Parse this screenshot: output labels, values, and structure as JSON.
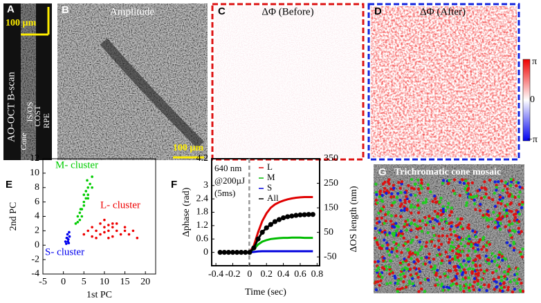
{
  "panels": {
    "A": {
      "label": "A",
      "scale": "100 µm",
      "title": "AO-OCT B-scan",
      "layers": [
        "Cone",
        "IS/OS",
        "COST",
        "RPE"
      ]
    },
    "B": {
      "label": "B",
      "title": "Amplitude",
      "scale": "100 µm"
    },
    "C": {
      "label": "C",
      "title": "ΔΦ (Before)"
    },
    "D": {
      "label": "D",
      "title": "ΔΦ (After)",
      "colorbar": [
        "π",
        "0",
        "−π"
      ]
    },
    "G": {
      "label": "G",
      "title": "Trichromatic cone mosaic"
    }
  },
  "chart_data": [
    {
      "type": "scatter",
      "label": "E",
      "xlabel": "1st PC",
      "ylabel": "2nd PC",
      "xlim": [
        -5,
        22.5
      ],
      "ylim": [
        -4,
        12
      ],
      "xticks": [
        -5,
        0,
        5,
        10,
        15,
        20
      ],
      "yticks": [
        -4,
        -2,
        0,
        2,
        4,
        6,
        8,
        10,
        12
      ],
      "series": [
        {
          "name": "M- cluster",
          "color": "#00cc00",
          "x": [
            3,
            3.5,
            4,
            4.5,
            5,
            5,
            5.5,
            6,
            6,
            6.5,
            7,
            4,
            4.5,
            5.5,
            3.5,
            6,
            5,
            7,
            4.2,
            5.8
          ],
          "values": [
            3,
            4,
            4.5,
            5,
            6,
            5.5,
            6.5,
            7,
            8,
            8.5,
            9.5,
            3.5,
            4,
            7.5,
            3.2,
            6.5,
            7,
            8,
            5,
            9
          ]
        },
        {
          "name": "L- cluster",
          "color": "#ee0000",
          "x": [
            5,
            6,
            7,
            8,
            9,
            10,
            11,
            12,
            13,
            14,
            15,
            16,
            17,
            18,
            8,
            9,
            10,
            11,
            12,
            13,
            10,
            11,
            12,
            7,
            15
          ],
          "values": [
            1.5,
            2,
            2.5,
            2,
            3,
            2.5,
            2,
            3,
            2,
            1.5,
            2,
            1.5,
            2,
            1,
            1,
            1.5,
            3.5,
            1,
            2.5,
            3,
            1.8,
            2.8,
            1.2,
            1.2,
            2.5
          ]
        },
        {
          "name": "S- cluster",
          "color": "#0000ee",
          "x": [
            0.5,
            0.8,
            1,
            1.2,
            1.5,
            0.7,
            1.1,
            1.4,
            0.9,
            1.3
          ],
          "values": [
            0.5,
            1,
            1.5,
            0.8,
            1.2,
            0.2,
            0.5,
            1.8,
            1,
            0.3
          ]
        }
      ]
    },
    {
      "type": "line",
      "label": "F",
      "xlabel": "Time (sec)",
      "ylabel": "Δphase (rad)",
      "y2label": "ΔOS length (nm)",
      "annotation": [
        "640 nm",
        "@200µJ",
        "(5ms)"
      ],
      "xlim": [
        -0.45,
        0.83
      ],
      "ylim": [
        -0.6,
        4.2
      ],
      "y2lim": [
        -86,
        350
      ],
      "xticks": [
        -0.4,
        -0.2,
        0,
        0.2,
        0.4,
        0.6,
        0.8
      ],
      "yticks": [
        0,
        0.6,
        1.2,
        1.8,
        2.4,
        3,
        4.2
      ],
      "y2ticks": [
        -50,
        50,
        150,
        250,
        350
      ],
      "x": [
        -0.35,
        -0.3,
        -0.25,
        -0.2,
        -0.15,
        -0.1,
        -0.05,
        0,
        0.05,
        0.1,
        0.15,
        0.2,
        0.25,
        0.3,
        0.35,
        0.4,
        0.45,
        0.5,
        0.55,
        0.6,
        0.65,
        0.7,
        0.75
      ],
      "series": [
        {
          "name": "L",
          "color": "#e00000",
          "values": [
            0,
            0,
            0,
            0,
            0,
            0,
            0,
            0,
            0.3,
            0.9,
            1.4,
            1.75,
            2.0,
            2.15,
            2.25,
            2.32,
            2.38,
            2.42,
            2.45,
            2.47,
            2.48,
            2.48,
            2.48
          ]
        },
        {
          "name": "M",
          "color": "#00bb00",
          "values": [
            0,
            0,
            0,
            0,
            0,
            0,
            0,
            0,
            0.15,
            0.35,
            0.48,
            0.55,
            0.6,
            0.62,
            0.64,
            0.65,
            0.65,
            0.66,
            0.66,
            0.66,
            0.65,
            0.65,
            0.65
          ]
        },
        {
          "name": "S",
          "color": "#0000dd",
          "values": [
            0,
            0,
            0,
            0,
            0,
            0,
            0,
            0,
            0.02,
            0.04,
            0.05,
            0.05,
            0.05,
            0.05,
            0.05,
            0.05,
            0.05,
            0.05,
            0.05,
            0.05,
            0.05,
            0.05,
            0.05
          ]
        },
        {
          "name": "All",
          "color": "#000000",
          "markers": true,
          "values": [
            0,
            0,
            0,
            0,
            0,
            0,
            0,
            0,
            0.2,
            0.6,
            0.9,
            1.1,
            1.25,
            1.38,
            1.47,
            1.55,
            1.6,
            1.63,
            1.66,
            1.68,
            1.69,
            1.7,
            1.7
          ]
        }
      ]
    }
  ]
}
